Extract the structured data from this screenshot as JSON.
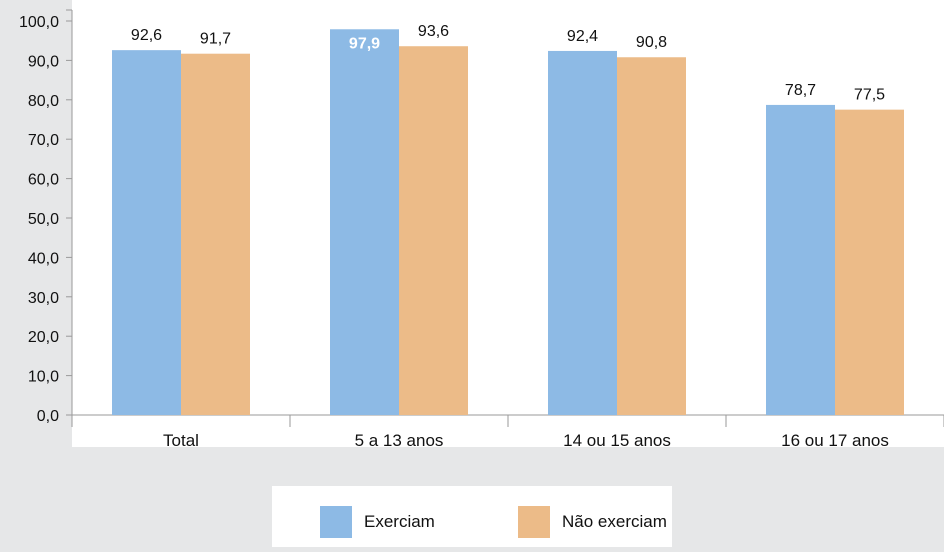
{
  "chart_data": {
    "type": "bar",
    "title": "",
    "xlabel": "",
    "ylabel": "",
    "ylim": [
      0,
      100
    ],
    "yticks": [
      "0,0",
      "10,0",
      "20,0",
      "30,0",
      "40,0",
      "50,0",
      "60,0",
      "70,0",
      "80,0",
      "90,0",
      "100,0"
    ],
    "categories": [
      "Total",
      "5 a 13 anos",
      "14 ou 15 anos",
      "16 ou 17 anos"
    ],
    "series": [
      {
        "name": "Exerciam",
        "color": "#8dbae5",
        "values": [
          92.6,
          97.9,
          92.4,
          78.7
        ],
        "labels": [
          "92,6",
          "97,9",
          "92,4",
          "78,7"
        ]
      },
      {
        "name": "Não exerciam",
        "color": "#ecbb88",
        "values": [
          91.7,
          93.6,
          90.8,
          77.5
        ],
        "labels": [
          "91,7",
          "93,6",
          "90,8",
          "77,5"
        ]
      }
    ],
    "grid": false,
    "legend_position": "bottom-center",
    "plot_background": "#ffffff"
  },
  "legend": {
    "items": [
      {
        "label": "Exerciam",
        "color": "#8dbae5"
      },
      {
        "label": "Não exerciam",
        "color": "#ecbb88"
      }
    ]
  }
}
